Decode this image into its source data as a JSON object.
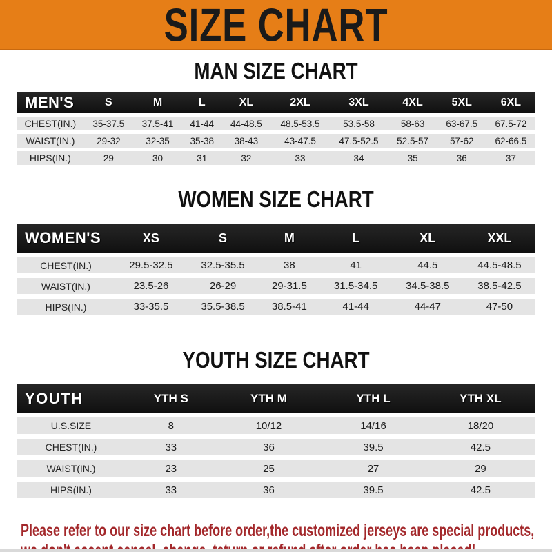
{
  "banner": {
    "title": "SIZE CHART",
    "bg_color": "#E67E17",
    "text_color": "#1A1A1A"
  },
  "sections": [
    {
      "title": "MAN SIZE CHART",
      "header_label": "MEN'S",
      "columns": [
        "S",
        "M",
        "L",
        "XL",
        "2XL",
        "3XL",
        "4XL",
        "5XL",
        "6XL"
      ],
      "rows": [
        {
          "label": "CHEST(IN.)",
          "values": [
            "35-37.5",
            "37.5-41",
            "41-44",
            "44-48.5",
            "48.5-53.5",
            "53.5-58",
            "58-63",
            "63-67.5",
            "67.5-72"
          ]
        },
        {
          "label": "WAIST(IN.)",
          "values": [
            "29-32",
            "32-35",
            "35-38",
            "38-43",
            "43-47.5",
            "47.5-52.5",
            "52.5-57",
            "57-62",
            "62-66.5"
          ]
        },
        {
          "label": "HIPS(IN.)",
          "values": [
            "29",
            "30",
            "31",
            "32",
            "33",
            "34",
            "35",
            "36",
            "37"
          ]
        }
      ]
    },
    {
      "title": "WOMEN SIZE CHART",
      "header_label": "WOMEN'S",
      "columns": [
        "XS",
        "S",
        "M",
        "L",
        "XL",
        "XXL"
      ],
      "rows": [
        {
          "label": "CHEST(IN.)",
          "values": [
            "29.5-32.5",
            "32.5-35.5",
            "38",
            "41",
            "44.5",
            "44.5-48.5"
          ]
        },
        {
          "label": "WAIST(IN.)",
          "values": [
            "23.5-26",
            "26-29",
            "29-31.5",
            "31.5-34.5",
            "34.5-38.5",
            "38.5-42.5"
          ]
        },
        {
          "label": "HIPS(IN.)",
          "values": [
            "33-35.5",
            "35.5-38.5",
            "38.5-41",
            "41-44",
            "44-47",
            "47-50"
          ]
        }
      ]
    },
    {
      "title": "YOUTH SIZE CHART",
      "header_label": "YOUTH",
      "columns": [
        "YTH S",
        "YTH M",
        "YTH L",
        "YTH XL"
      ],
      "rows": [
        {
          "label": "U.S.SIZE",
          "values": [
            "8",
            "10/12",
            "14/16",
            "18/20"
          ]
        },
        {
          "label": "CHEST(IN.)",
          "values": [
            "33",
            "36",
            "39.5",
            "42.5"
          ]
        },
        {
          "label": "WAIST(IN.)",
          "values": [
            "23",
            "25",
            "27",
            "29"
          ]
        },
        {
          "label": "HIPS(IN.)",
          "values": [
            "33",
            "36",
            "39.5",
            "42.5"
          ]
        }
      ]
    }
  ],
  "notice": {
    "color": "#A3282B",
    "lines": [
      "Please refer to our size chart before order,the customized jerseys are special products,",
      "we don't accept cancel, change, teturn or refund after order has been placed!"
    ]
  }
}
